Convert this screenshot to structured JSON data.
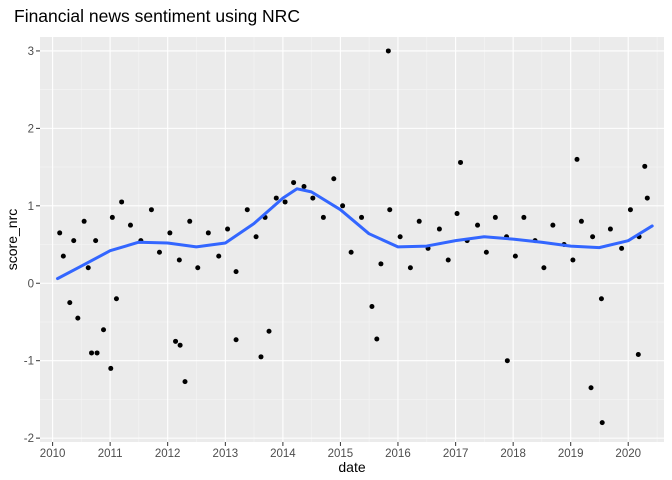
{
  "chart_data": {
    "type": "scatter",
    "title": "Financial news sentiment using NRC",
    "xlabel": "date",
    "ylabel": "score_nrc",
    "xlim": [
      "2009-10-13",
      "2020-08-15"
    ],
    "ylim": [
      -2.05,
      3.18
    ],
    "x_ticks": [
      "2010",
      "2011",
      "2012",
      "2013",
      "2014",
      "2015",
      "2016",
      "2017",
      "2018",
      "2019",
      "2020"
    ],
    "y_ticks": [
      "-2",
      "-1",
      "0",
      "1",
      "2",
      "3"
    ],
    "y_tick_values": [
      -2,
      -1,
      0,
      1,
      2,
      3
    ],
    "grid": true,
    "legend": "none",
    "colors": {
      "panel": "#ebebeb",
      "grid_major": "#ffffff",
      "grid_minor": "#f5f5f5",
      "points": "#000000",
      "trend": "#3366ff",
      "tick_label": "#4d4d4d"
    },
    "trend_line": {
      "name": "smooth",
      "x": [
        "2010-02-01",
        "2010-07-01",
        "2011-01-01",
        "2011-07-01",
        "2012-01-01",
        "2012-07-01",
        "2013-01-01",
        "2013-07-01",
        "2014-01-01",
        "2014-04-01",
        "2014-07-01",
        "2015-01-01",
        "2015-07-01",
        "2016-01-01",
        "2016-07-01",
        "2017-01-01",
        "2017-07-01",
        "2018-01-01",
        "2018-07-01",
        "2019-01-01",
        "2019-07-01",
        "2020-01-01",
        "2020-06-01"
      ],
      "y": [
        0.06,
        0.22,
        0.42,
        0.53,
        0.52,
        0.47,
        0.52,
        0.77,
        1.1,
        1.22,
        1.18,
        0.95,
        0.64,
        0.47,
        0.48,
        0.55,
        0.6,
        0.57,
        0.53,
        0.48,
        0.46,
        0.55,
        0.74
      ]
    },
    "series": [
      {
        "x": [
          "2010-02-15",
          "2010-03-10",
          "2010-04-20",
          "2010-05-15",
          "2010-06-10",
          "2010-07-20",
          "2010-08-15",
          "2010-09-05",
          "2010-10-01",
          "2010-11-20",
          "2011-01-15",
          "2011-02-10",
          "2011-03-15",
          "2011-05-10",
          "2011-07-15",
          "2011-09-20",
          "2011-11-10",
          "2012-01-15",
          "2012-02-20",
          "2012-03-15",
          "2012-05-20",
          "2012-07-10",
          "2012-09-15",
          "2012-11-20",
          "2013-01-15",
          "2013-03-10",
          "2013-05-20",
          "2013-07-15",
          "2013-09-10",
          "2013-11-20",
          "2014-01-15",
          "2014-03-10",
          "2014-05-15",
          "2014-07-10",
          "2014-09-15",
          "2014-11-20",
          "2015-01-15",
          "2015-03-10",
          "2015-05-15",
          "2015-07-20",
          "2015-09-15",
          "2015-11-10",
          "2016-01-15",
          "2016-03-20",
          "2016-05-15",
          "2016-07-10",
          "2016-09-20",
          "2016-11-15",
          "2017-01-10",
          "2017-03-15",
          "2017-05-20",
          "2017-07-15",
          "2017-09-10",
          "2017-11-20",
          "2018-01-15",
          "2018-03-10",
          "2018-05-20",
          "2018-07-15",
          "2018-09-10",
          "2018-11-20",
          "2019-01-15",
          "2019-03-10",
          "2019-05-20",
          "2019-07-15",
          "2019-09-10",
          "2019-11-20",
          "2020-01-15",
          "2020-03-10",
          "2020-05-01"
        ],
        "y": [
          0.65,
          0.35,
          -0.25,
          0.55,
          -0.45,
          0.8,
          0.2,
          -0.9,
          0.55,
          -0.6,
          0.85,
          -0.2,
          1.05,
          0.75,
          0.55,
          0.95,
          0.4,
          0.65,
          -0.75,
          0.3,
          0.8,
          0.2,
          0.65,
          0.35,
          0.7,
          0.15,
          0.95,
          0.6,
          0.85,
          1.1,
          1.05,
          1.3,
          1.25,
          1.1,
          0.85,
          1.35,
          1.0,
          0.4,
          0.85,
          -0.3,
          0.25,
          0.95,
          0.6,
          0.2,
          0.8,
          0.45,
          0.7,
          0.3,
          0.9,
          0.55,
          0.75,
          0.4,
          0.85,
          0.6,
          0.35,
          0.85,
          0.55,
          0.2,
          0.75,
          0.5,
          0.3,
          0.8,
          0.6,
          -0.2,
          0.7,
          0.45,
          0.95,
          0.6,
          1.1
        ]
      }
    ],
    "notable_points": {
      "x": [
        "2015-11-01",
        "2010-10-10",
        "2011-01-05",
        "2012-03-20",
        "2012-04-20",
        "2013-03-10",
        "2013-08-15",
        "2013-10-05",
        "2015-08-20",
        "2017-02-01",
        "2017-11-25",
        "2019-02-10",
        "2019-05-10",
        "2019-07-20",
        "2020-03-05",
        "2020-04-15"
      ],
      "y": [
        3.0,
        -0.9,
        -1.1,
        -0.8,
        -1.27,
        -0.73,
        -0.95,
        -0.62,
        -0.72,
        1.56,
        -1.0,
        1.6,
        -1.35,
        -1.8,
        -0.92,
        1.51
      ]
    }
  }
}
